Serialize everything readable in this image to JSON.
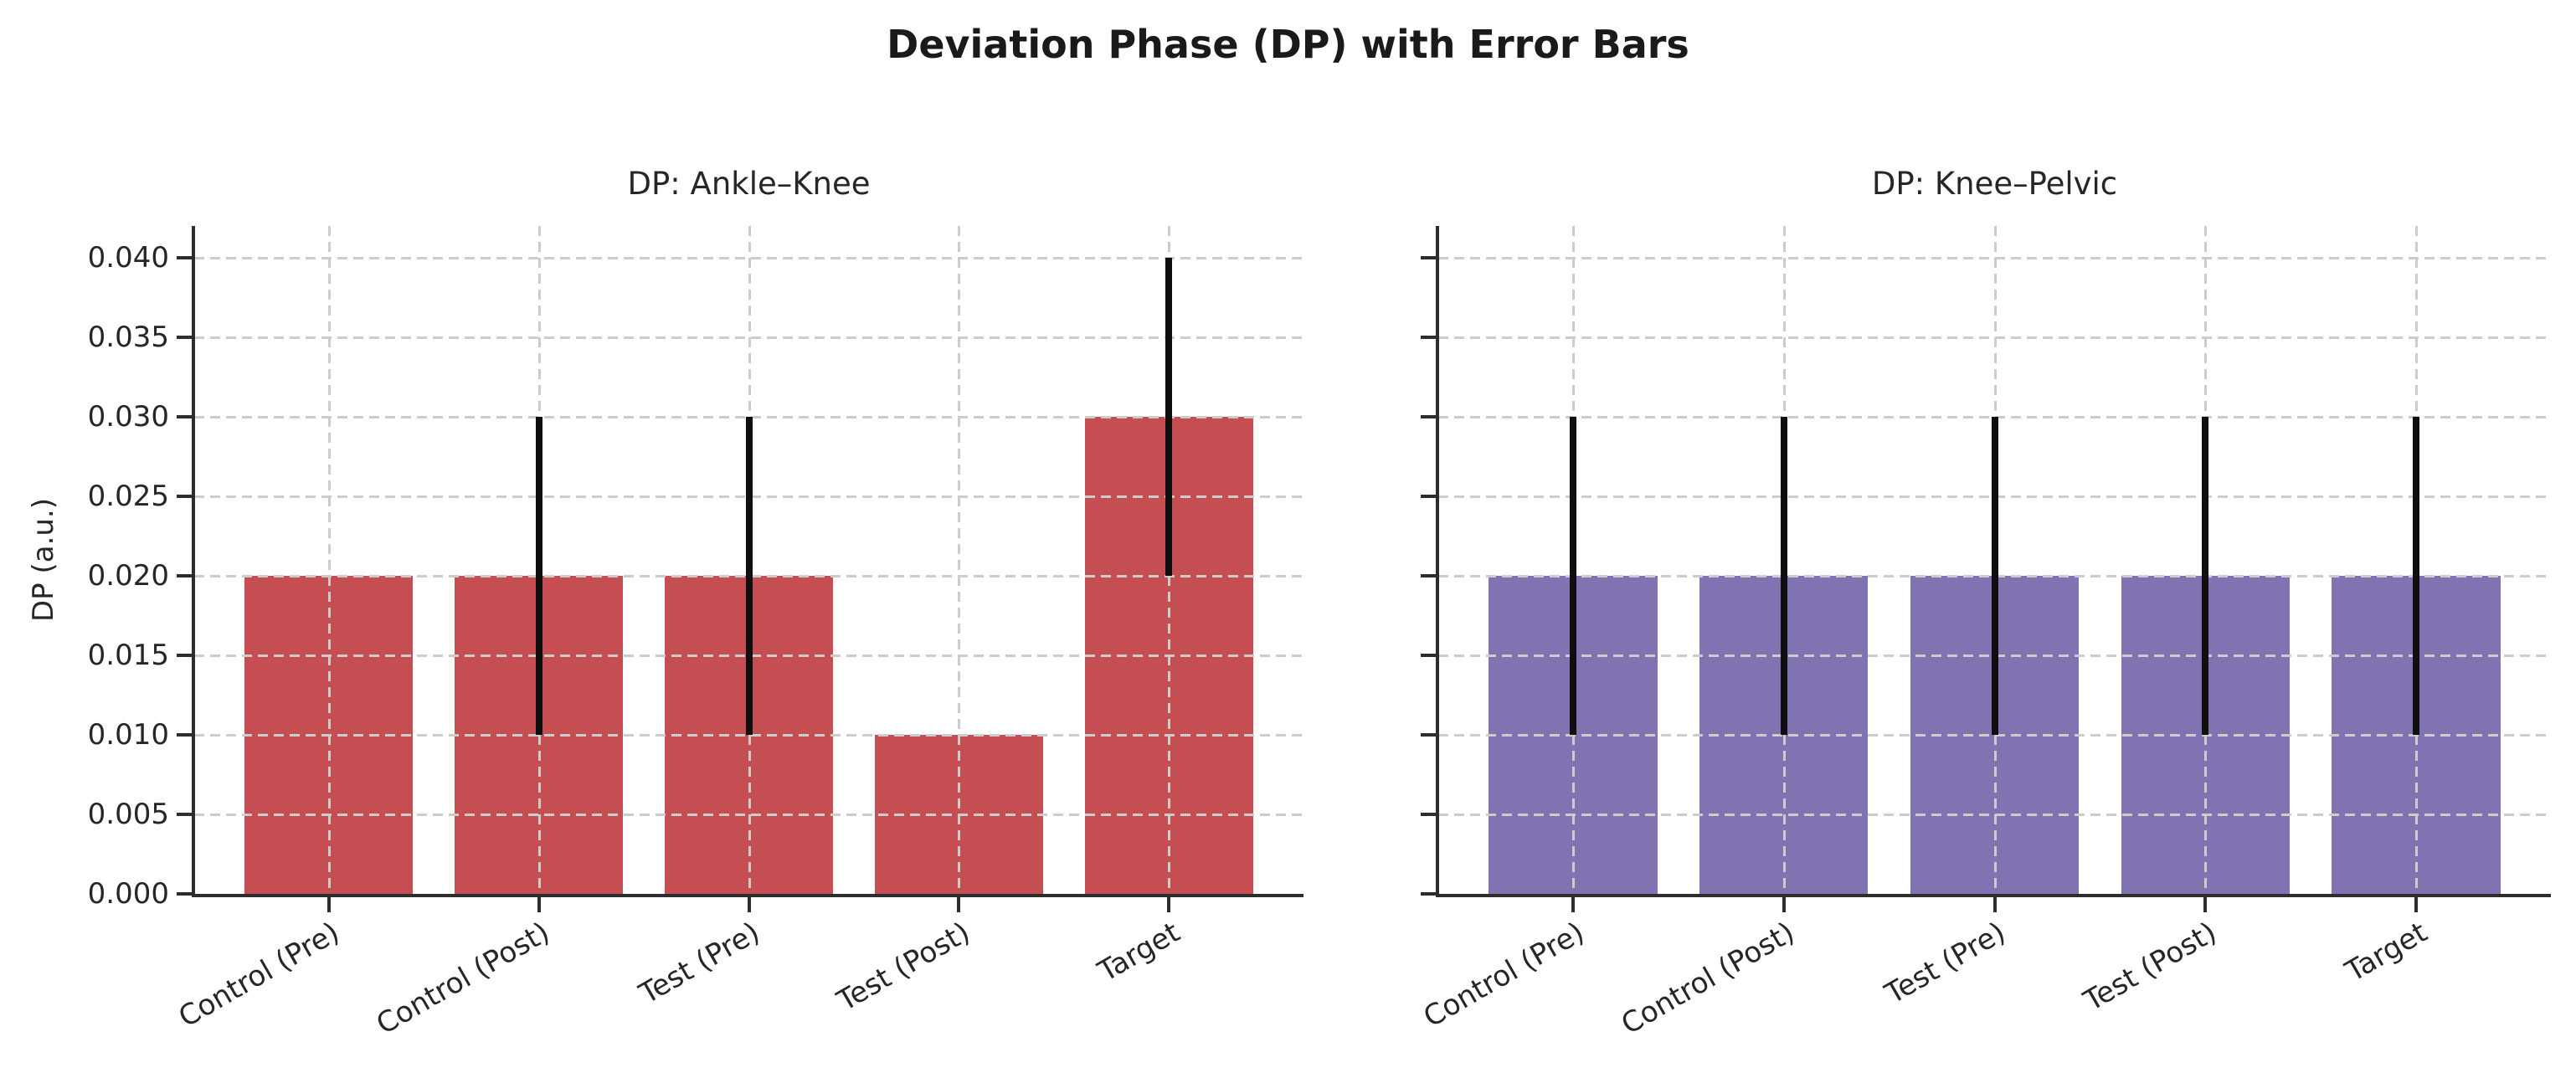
{
  "figure": {
    "title": "Deviation Phase (DP) with Error Bars"
  },
  "chart_data": [
    {
      "type": "bar",
      "title": "DP: Ankle–Knee",
      "ylabel": "DP (a.u.)",
      "categories": [
        "Control (Pre)",
        "Control (Post)",
        "Test (Pre)",
        "Test (Post)",
        "Target"
      ],
      "values": [
        0.02,
        0.02,
        0.02,
        0.01,
        0.03
      ],
      "error_bars": [
        0,
        0.01,
        0.01,
        0,
        0.01
      ],
      "bar_color": "#C44E52",
      "error_bar_color": "#0f0f0f",
      "ylim": [
        0,
        0.042
      ],
      "yticks": [
        0,
        0.005,
        0.01,
        0.015,
        0.02,
        0.025,
        0.03,
        0.035,
        0.04
      ],
      "ytick_labels": [
        "0.000",
        "0.005",
        "0.010",
        "0.015",
        "0.020",
        "0.025",
        "0.030",
        "0.035",
        "0.040"
      ],
      "show_ytick_labels": true,
      "grid": "dashed",
      "legend": "none"
    },
    {
      "type": "bar",
      "title": "DP: Knee–Pelvic",
      "ylabel": "",
      "categories": [
        "Control (Pre)",
        "Control (Post)",
        "Test (Pre)",
        "Test (Post)",
        "Target"
      ],
      "values": [
        0.02,
        0.02,
        0.02,
        0.02,
        0.02
      ],
      "error_bars": [
        0.01,
        0.01,
        0.01,
        0.01,
        0.01
      ],
      "bar_color": "#8172B2",
      "error_bar_color": "#0f0f0f",
      "ylim": [
        0,
        0.042
      ],
      "yticks": [
        0,
        0.005,
        0.01,
        0.015,
        0.02,
        0.025,
        0.03,
        0.035,
        0.04
      ],
      "ytick_labels": [
        "0.000",
        "0.005",
        "0.010",
        "0.015",
        "0.020",
        "0.025",
        "0.030",
        "0.035",
        "0.040"
      ],
      "show_ytick_labels": false,
      "grid": "dashed",
      "legend": "none"
    }
  ]
}
